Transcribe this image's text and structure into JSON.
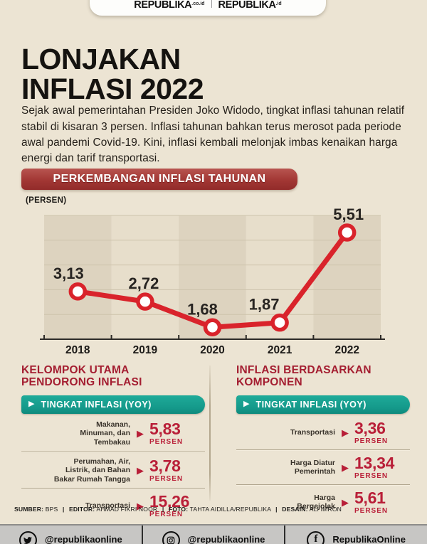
{
  "header": {
    "logo_left_name": "REPUBLIKA",
    "logo_left_suffix": ".co.id",
    "logo_right_name": "REPUBLIKA",
    "logo_right_suffix": ".id"
  },
  "title": "LONJAKAN\nINFLASI 2022",
  "intro": "Sejak awal pemerintahan Presiden Joko Widodo, tingkat inflasi tahunan relatif stabil di kisaran 3 persen. Inflasi tahunan bahkan terus merosot pada periode awal pandemi Covid-19. Kini, inflasi kembali melonjak imbas kenaikan harga energi dan tarif transportasi.",
  "section_banner": "PERKEMBANGAN INFLASI TAHUNAN",
  "chart_data": {
    "type": "line",
    "title": "PERKEMBANGAN INFLASI TAHUNAN",
    "ylabel": "(PERSEN)",
    "xlabel": "",
    "categories": [
      "2018",
      "2019",
      "2020",
      "2021",
      "2022"
    ],
    "values": [
      3.13,
      2.72,
      1.68,
      1.87,
      5.51
    ],
    "value_labels": [
      "3,13",
      "2,72",
      "1,68",
      "1,87",
      "5,51"
    ],
    "ylim": [
      1.2,
      6.2
    ],
    "grid": true,
    "legend": "none",
    "line_color": "#d9232b",
    "marker_fill": "#ffffff",
    "band_dark": "#ddd3bf",
    "band_light": "#e7decb",
    "grid_color": "#cdc3ab"
  },
  "icons": {
    "play_glyph": "▶"
  },
  "left_panel": {
    "heading": "KELOMPOK UTAMA\nPENDORONG INFLASI",
    "banner": "TINGKAT INFLASI (YOY)",
    "rows": [
      {
        "label": "Makanan,\nMinuman, dan\nTembakau",
        "value": "5,83",
        "unit": "PERSEN"
      },
      {
        "label": "Perumahan, Air,\nListrik, dan Bahan\nBakar Rumah Tangga",
        "value": "3,78",
        "unit": "PERSEN"
      },
      {
        "label": "Transportasi",
        "value": "15,26",
        "unit": "PERSEN"
      }
    ]
  },
  "right_panel": {
    "heading": "INFLASI BERDASARKAN\nKOMPONEN",
    "banner": "TINGKAT INFLASI (YOY)",
    "rows": [
      {
        "label": "Transportasi",
        "value": "3,36",
        "unit": "PERSEN"
      },
      {
        "label": "Harga Diatur\nPemerintah",
        "value": "13,34",
        "unit": "PERSEN"
      },
      {
        "label": "Harga\nBergejolak",
        "value": "5,61",
        "unit": "PERSEN"
      }
    ]
  },
  "credits": {
    "separator": "|",
    "items": [
      {
        "label": "SUMBER:",
        "value": "BPS"
      },
      {
        "label": "EDITOR:",
        "value": "AHMAD FIKRI NOOR"
      },
      {
        "label": "FOTO:",
        "value": "TAHTA AIDILLA/REPUBLIKA"
      },
      {
        "label": "DESAIN:",
        "value": "ALI IMRON"
      }
    ]
  },
  "social": {
    "items": [
      {
        "icon": "twitter-icon",
        "handle": "@republikaonline"
      },
      {
        "icon": "instagram-icon",
        "handle": "@republikaonline"
      },
      {
        "icon": "facebook-icon",
        "handle": "RepublikaOnline"
      }
    ]
  }
}
